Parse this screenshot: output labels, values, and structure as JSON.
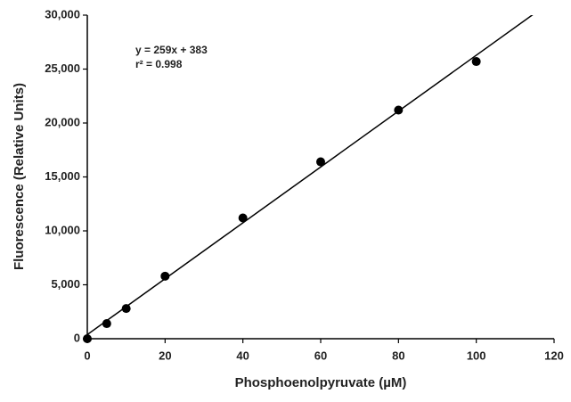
{
  "chart_data": {
    "type": "scatter",
    "x_label": "Phosphoenolpyruvate (µM)",
    "y_label": "Fluorescence (Relative Units)",
    "annotations": [
      "y = 259x + 383",
      "r² = 0.998"
    ],
    "x": [
      0,
      5,
      10,
      20,
      40,
      60,
      80,
      100
    ],
    "values": [
      0,
      1400,
      2800,
      5800,
      11200,
      16400,
      21200,
      25700
    ],
    "color": "#000000",
    "fit_line": {
      "slope": 259,
      "intercept": 383
    },
    "xlim": [
      0,
      120
    ],
    "xticks": [
      0,
      20,
      40,
      60,
      80,
      100,
      120
    ],
    "ylim": [
      0,
      30000
    ],
    "yticks": [
      0,
      {
        "value": 5000,
        "label": "5,000"
      },
      {
        "value": 10000,
        "label": "10,000"
      },
      {
        "value": 15000,
        "label": "15,000"
      },
      {
        "value": 20000,
        "label": "20,000"
      },
      {
        "value": 25000,
        "label": "25,000"
      },
      {
        "value": 30000,
        "label": "30,000"
      }
    ]
  }
}
